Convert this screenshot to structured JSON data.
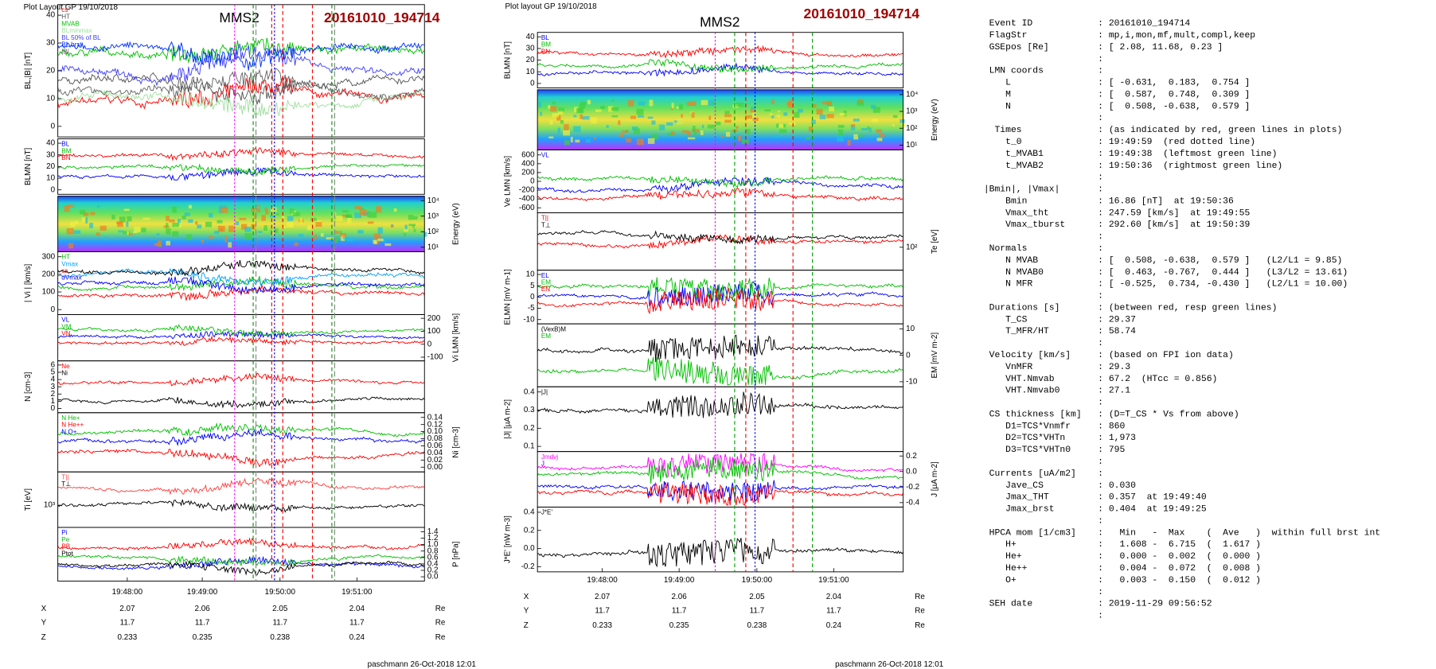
{
  "left": {
    "header": "Plot Layout GP 19/10/2018",
    "title": "MMS2",
    "event": "20161010_194714",
    "panels": [
      {
        "ylabel": "BL,|B| [nT]",
        "yticks": [
          "0",
          "10",
          "20",
          "30",
          "40"
        ],
        "legend": [
          {
            "text": "cs",
            "color": "#ff0000"
          },
          {
            "text": "HT",
            "color": "#555555"
          },
          {
            "text": "MVAB",
            "color": "#00c000"
          },
          {
            "text": "BLminmax",
            "color": "#a0e0a0"
          },
          {
            "text": "BL 50% of BL",
            "color": "#4040ff"
          },
          {
            "text": "BL brst",
            "color": "#0030ff"
          },
          {
            "text": "|B|",
            "color": "#666666"
          }
        ]
      },
      {
        "ylabel": "BLMN [nT]",
        "yticks": [
          "0",
          "10",
          "20",
          "30",
          "40"
        ],
        "legend": [
          {
            "text": "BL",
            "color": "#0000ff"
          },
          {
            "text": "BM",
            "color": "#00c000"
          },
          {
            "text": "BN",
            "color": "#ff0000"
          }
        ]
      },
      {
        "spectrogram": true,
        "y2label": "Energy (eV)",
        "y2ticks": [
          "10¹",
          "10²",
          "10³",
          "10⁴"
        ]
      },
      {
        "ylabel": "| Vi | [km/s]",
        "yticks": [
          "0",
          "100",
          "200",
          "300"
        ],
        "legend": [
          {
            "text": "HT",
            "color": "#00c000"
          },
          {
            "text": "Vmax",
            "color": "#00a0ff"
          },
          {
            "text": "cs",
            "color": "#ff0000"
          },
          {
            "text": "dVmax",
            "color": "#0000ff"
          },
          {
            "text": "",
            "color": "#000000"
          }
        ]
      },
      {
        "y2label": "Vi LMN [km/s]",
        "y2ticks": [
          "-100",
          "0",
          "100",
          "200"
        ],
        "legend": [
          {
            "text": "VL",
            "color": "#0000ff"
          },
          {
            "text": "VM",
            "color": "#00c000"
          },
          {
            "text": "VN",
            "color": "#ff0000"
          }
        ]
      },
      {
        "ylabel": "N [cm-3]",
        "yticks": [
          "0",
          "1",
          "2",
          "3",
          "4",
          "5",
          "6"
        ],
        "legend": [
          {
            "text": "Ne",
            "color": "#ff0000"
          },
          {
            "text": "Ni",
            "color": "#000000"
          }
        ]
      },
      {
        "y2label": "Ni [cm-3]",
        "y2ticks": [
          "0.00",
          "0.02",
          "0.04",
          "0.06",
          "0.08",
          "0.10",
          "0.12",
          "0.14"
        ],
        "legend": [
          {
            "text": "N He+",
            "color": "#00c000"
          },
          {
            "text": "N He++",
            "color": "#ff0000"
          },
          {
            "text": "N O+",
            "color": "#0000ff"
          }
        ]
      },
      {
        "ylabel": "Ti [eV]",
        "yticks": [
          "10³"
        ],
        "legend": [
          {
            "text": "T||",
            "color": "#ff4040"
          },
          {
            "text": "T⊥",
            "color": "#000000"
          }
        ]
      },
      {
        "y2label": "P [nPa]",
        "y2ticks": [
          "0.0",
          "0.2",
          "0.4",
          "0.6",
          "0.8",
          "1.0",
          "1.2",
          "1.4"
        ],
        "legend": [
          {
            "text": "Pi",
            "color": "#0000ff"
          },
          {
            "text": "Pe",
            "color": "#00c000"
          },
          {
            "text": "PB",
            "color": "#ff0000"
          },
          {
            "text": "Ptot",
            "color": "#000000"
          }
        ]
      }
    ],
    "xticks": [
      "19:48:00",
      "19:49:00",
      "19:50:00",
      "19:51:00"
    ],
    "coords": [
      [
        "X",
        "2.07",
        "2.06",
        "2.05",
        "2.04",
        "Re"
      ],
      [
        "Y",
        "11.7",
        "11.7",
        "11.7",
        "11.7",
        "Re"
      ],
      [
        "Z",
        "0.233",
        "0.235",
        "0.238",
        "0.24",
        "Re"
      ]
    ],
    "footer": "paschmann 26-Oct-2018 12:01"
  },
  "middle": {
    "header": "Plot layout GP 19/10/2018",
    "title": "MMS2",
    "event": "20161010_194714",
    "panels": [
      {
        "ylabel": "BLMN [nT]",
        "yticks": [
          "0",
          "10",
          "20",
          "30",
          "40"
        ],
        "legend": [
          {
            "text": "BL",
            "color": "#0000ff"
          },
          {
            "text": "BM",
            "color": "#00c000"
          },
          {
            "text": "BN",
            "color": "#ff0000"
          }
        ]
      },
      {
        "spectrogram": true,
        "y2label": "Energy (eV)",
        "y2ticks": [
          "10¹",
          "10²",
          "10³",
          "10⁴"
        ]
      },
      {
        "ylabel": "Ve LMN [km/s]",
        "yticks": [
          "-600",
          "-400",
          "-200",
          "0",
          "200",
          "400",
          "600"
        ],
        "legend": [
          {
            "text": "VL",
            "color": "#0000ff"
          },
          {
            "text": "",
            "color": "#00c000"
          },
          {
            "text": "",
            "color": "#ff0000"
          }
        ]
      },
      {
        "y2label": "Te [eV]",
        "y2ticks": [
          "10²"
        ],
        "legend": [
          {
            "text": "T||",
            "color": "#ff0000"
          },
          {
            "text": "T⊥",
            "color": "#000000"
          }
        ]
      },
      {
        "ylabel": "ELMN [mV m-1]",
        "yticks": [
          "-10",
          "-5",
          "0",
          "5",
          "10"
        ],
        "legend": [
          {
            "text": "EL",
            "color": "#0000ff"
          },
          {
            "text": "EM",
            "color": "#00c000"
          },
          {
            "text": "EN",
            "color": "#ff0000"
          }
        ]
      },
      {
        "y2label": "EM [mV m-2]",
        "y2ticks": [
          "-10",
          "0",
          "10"
        ],
        "legend": [
          {
            "text": "(VexB)M",
            "color": "#000000"
          },
          {
            "text": "EM",
            "color": "#00c000"
          }
        ]
      },
      {
        "ylabel": "|J| [µA m-2]",
        "yticks": [
          "0.1",
          "0.2",
          "0.3",
          "0.4"
        ],
        "legend": [
          {
            "text": "|J|",
            "color": "#000000"
          }
        ]
      },
      {
        "y2label": "J [µA m-2]",
        "y2ticks": [
          "-0.4",
          "-0.2",
          "0.0",
          "0.2"
        ],
        "legend": [
          {
            "text": "Jmdvj",
            "color": "#ff00ff"
          },
          {
            "text": "J",
            "color": "#0000ff"
          },
          {
            "text": "",
            "color": "#00c000"
          },
          {
            "text": "",
            "color": "#ff0000"
          }
        ]
      },
      {
        "ylabel": "J*E' [nW m-3]",
        "yticks": [
          "-0.2",
          "0.0",
          "0.2",
          "0.4"
        ],
        "legend": [
          {
            "text": "J*E'",
            "color": "#000000"
          }
        ]
      }
    ],
    "xticks": [
      "19:48:00",
      "19:49:00",
      "19:50:00",
      "19:51:00"
    ],
    "coords": [
      [
        "X",
        "2.07",
        "2.06",
        "2.05",
        "2.04",
        "Re"
      ],
      [
        "Y",
        "11.7",
        "11.7",
        "11.7",
        "11.7",
        "Re"
      ],
      [
        "Z",
        "0.233",
        "0.235",
        "0.238",
        "0.24",
        "Re"
      ]
    ],
    "footer": "paschmann 26-Oct-2018 12:01"
  },
  "text": {
    "lines": [
      " Event ID            : 20161010_194714",
      " FlagStr             : mp,i,mon,mf,mult,compl,keep",
      " GSEpos [Re]         : [ 2.08, 11.68, 0.23 ]",
      "                     :",
      " LMN coords          :",
      "    L                : [ -0.631,  0.183,  0.754 ]",
      "    M                : [  0.587,  0.748,  0.309 ]",
      "    N                : [  0.508, -0.638,  0.579 ]",
      "                     :",
      "  Times              : (as indicated by red, green lines in plots)",
      "    t_0              : 19:49:59  (red dotted line)",
      "    t_MVAB1          : 19:49:38  (leftmost green line)",
      "    t_MVAB2          : 19:50:36  (rightmost green line)",
      "                     :",
      "|Bmin|, |Vmax|       :",
      "    Bmin             : 16.86 [nT]  at 19:50:36",
      "    Vmax_tht         : 247.59 [km/s]  at 19:49:55",
      "    Vmax_tburst      : 292.60 [km/s]  at 19:50:39",
      "                     :",
      " Normals             :",
      "    N MVAB           : [  0.508, -0.638,  0.579 ]   (L2/L1 = 9.85)",
      "    N MVAB0          : [  0.463, -0.767,  0.444 ]   (L3/L2 = 13.61)",
      "    N MFR            : [ -0.525,  0.734, -0.430 ]   (L2/L1 = 10.00)",
      "                     :",
      " Durations [s]       : (between red, resp green lines)",
      "    T_CS             : 29.37",
      "    T_MFR/HT         : 58.74",
      "                     :",
      " Velocity [km/s]     : (based on FPI ion data)",
      "    VnMFR            : 29.3",
      "    VHT.Nmvab        : 67.2  (HTcc = 0.856)",
      "    VHT.Nmvab0       : 27.1",
      "                     :",
      " CS thickness [km]   : (D=T_CS * Vs from above)",
      "    D1=TCS*Vnmfr     : 860",
      "    D2=TCS*VHTn      : 1,973",
      "    D3=TCS*VHTn0     : 795",
      "                     :",
      " Currents [uA/m2]    :",
      "    Jave_CS          : 0.030",
      "    Jmax_THT         : 0.357  at 19:49:40",
      "    Jmax_brst        : 0.404  at 19:49:25",
      "                     :",
      " HPCA mom [1/cm3]    :   Min   -  Max    (  Ave   )  within full brst int",
      "    H+               :   1.608 -  6.715  (  1.617 )",
      "    He+              :   0.000 -  0.002  (  0.000 )",
      "    He++             :   0.004 -  0.072  (  0.008 )",
      "    O+               :   0.003 -  0.150  (  0.012 )",
      "                     :",
      " SEH date            : 2019-11-29 09:56:52",
      "                     :"
    ]
  }
}
